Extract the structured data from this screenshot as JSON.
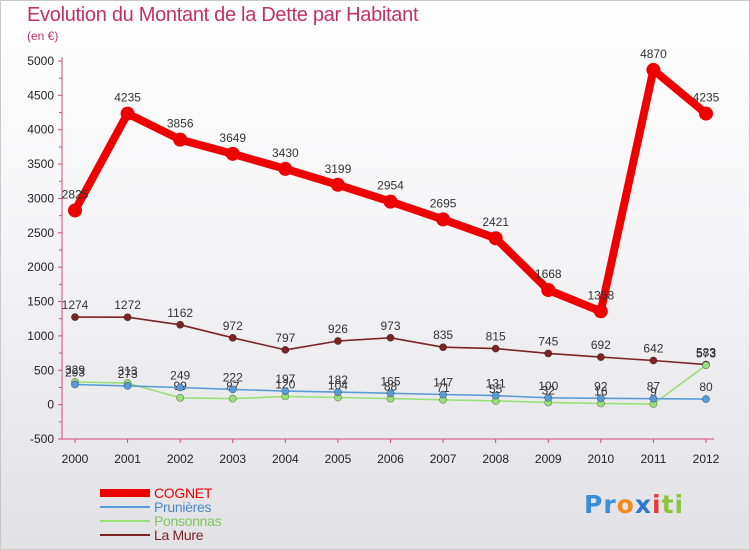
{
  "header": {
    "title": "Evolution du Montant de la Dette par Habitant",
    "unit": "(en €)"
  },
  "brand": {
    "logo_text": "Proxiti",
    "letter_colors": [
      "#3a8fd8",
      "#3a8fd8",
      "#f08a1c",
      "#2f7ad0",
      "#e63b3b",
      "#8cc63f",
      "#8cc63f"
    ]
  },
  "chart_data": {
    "type": "line",
    "x": [
      "2000",
      "2001",
      "2002",
      "2003",
      "2004",
      "2005",
      "2006",
      "2007",
      "2008",
      "2009",
      "2010",
      "2011",
      "2012"
    ],
    "ylim": [
      -500,
      5000
    ],
    "yticks": [
      "-500",
      "0",
      "500",
      "1000",
      "1500",
      "2000",
      "2500",
      "3000",
      "3500",
      "4000",
      "4500",
      "5000"
    ],
    "grid": false,
    "legend_position": "bottom-left",
    "series": [
      {
        "name": "COGNET",
        "color": "#ee0000",
        "thick": true,
        "values": [
          2825,
          4235,
          3856,
          3649,
          3430,
          3199,
          2954,
          2695,
          2421,
          1668,
          1358,
          4870,
          4235
        ]
      },
      {
        "name": "Prunières",
        "color": "#5b9bd5",
        "thick": false,
        "values": [
          293,
          273,
          249,
          222,
          197,
          182,
          165,
          147,
          131,
          100,
          92,
          87,
          80
        ]
      },
      {
        "name": "Ponsonnas",
        "color": "#9bdf7b",
        "thick": false,
        "values": [
          329,
          313,
          99,
          87,
          120,
          104,
          88,
          71,
          55,
          32,
          16,
          9,
          573
        ]
      },
      {
        "name": "La Mure",
        "color": "#7a2424",
        "thick": false,
        "values": [
          1274,
          1272,
          1162,
          972,
          797,
          926,
          973,
          835,
          815,
          745,
          692,
          642,
          583
        ]
      }
    ]
  }
}
